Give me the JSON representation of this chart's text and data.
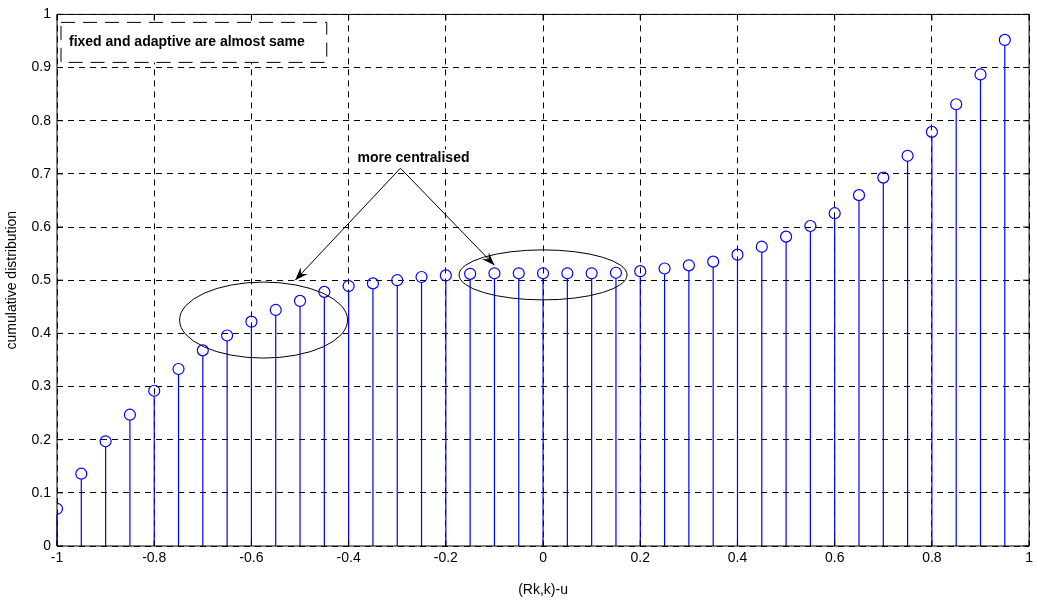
{
  "chart_data": {
    "type": "lollipop",
    "xlabel": "(Rk,k)-u",
    "ylabel": "cumulative distribution",
    "annotations": [
      "fixed and adaptive are almost same",
      {
        "text": "more centralised",
        "x": -0.1,
        "y": 0.515
      }
    ],
    "x": [
      -1,
      -0.95,
      -0.9,
      -0.85,
      -0.8,
      -0.75,
      -0.7,
      -0.65,
      -0.6,
      -0.55,
      -0.5,
      -0.45,
      -0.4,
      -0.35,
      -0.3,
      -0.25,
      -0.2,
      -0.15,
      -0.1,
      -0.05,
      0,
      0.05,
      0.1,
      0.15,
      0.2,
      0.25,
      0.3,
      0.35,
      0.4,
      0.45,
      0.5,
      0.55,
      0.6,
      0.65,
      0.7,
      0.75,
      0.8,
      0.85,
      0.9,
      0.95
    ],
    "series": [
      {
        "color": "#0000ff",
        "values": [
          0.07,
          0.136,
          0.197,
          0.247,
          0.292,
          0.333,
          0.368,
          0.396,
          0.422,
          0.444,
          0.461,
          0.478,
          0.489,
          0.494,
          0.5,
          0.506,
          0.509,
          0.512,
          0.513,
          0.513,
          0.513,
          0.513,
          0.513,
          0.514,
          0.517,
          0.522,
          0.528,
          0.535,
          0.548,
          0.563,
          0.582,
          0.602,
          0.626,
          0.66,
          0.693,
          0.734,
          0.779,
          0.831,
          0.887,
          0.952
        ]
      }
    ],
    "xlim": [
      -1,
      1
    ],
    "xticks": [
      -1,
      -0.8,
      -0.6,
      -0.4,
      -0.2,
      0,
      0.2,
      0.4,
      0.6,
      0.8,
      1
    ],
    "ylim": [
      0,
      1
    ],
    "yticks": [
      0,
      0.1,
      0.2,
      0.3,
      0.4,
      0.5,
      0.6,
      0.7,
      0.8,
      0.9,
      1
    ],
    "grid": true,
    "legend": false,
    "marker": "circle"
  }
}
